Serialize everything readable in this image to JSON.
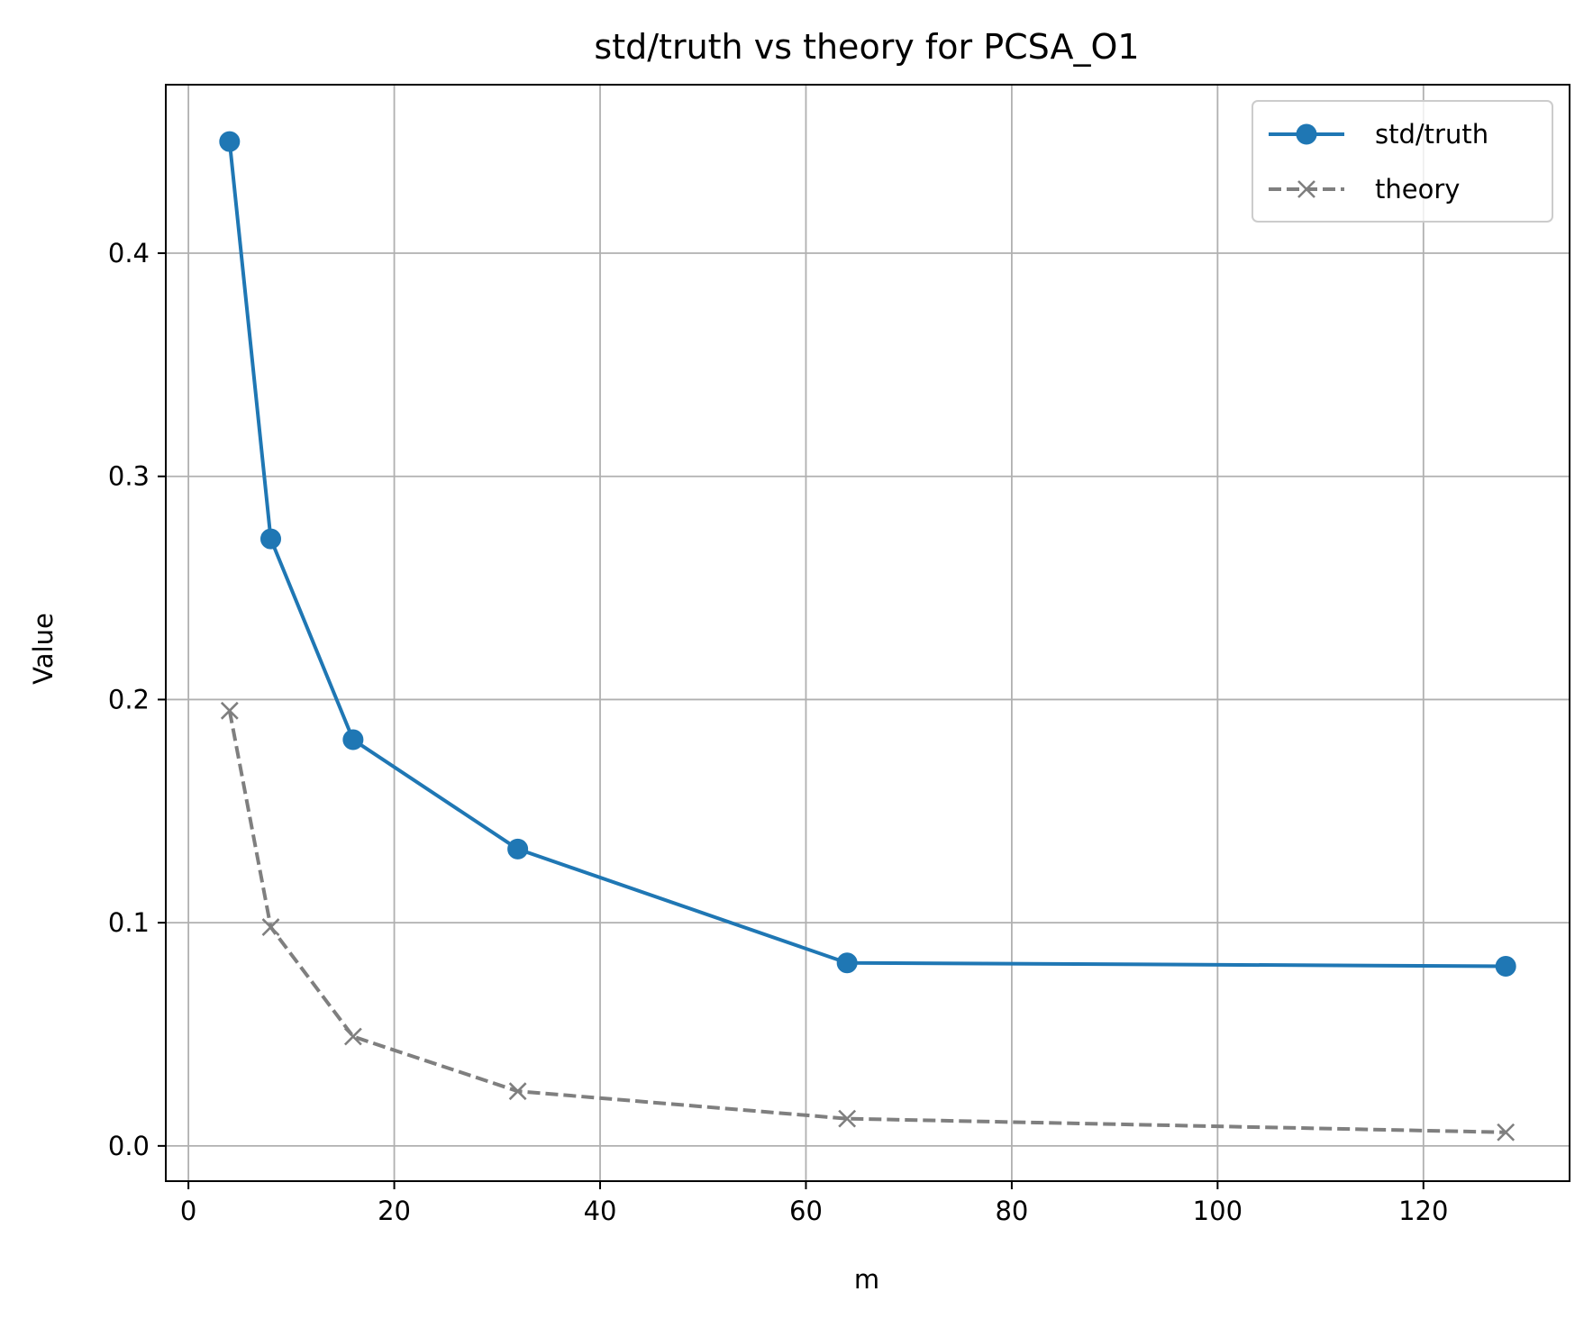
{
  "chart_data": {
    "type": "line",
    "title": "std/truth vs theory for PCSA_O1",
    "xlabel": "m",
    "ylabel": "Value",
    "xlim": [
      -2.2,
      134.2
    ],
    "ylim": [
      -0.0158,
      0.4755
    ],
    "xticks": [
      0,
      20,
      40,
      60,
      80,
      100,
      120
    ],
    "yticks": [
      0.0,
      0.1,
      0.2,
      0.3,
      0.4
    ],
    "xtick_labels": [
      "0",
      "20",
      "40",
      "60",
      "80",
      "100",
      "120"
    ],
    "ytick_labels": [
      "0.0",
      "0.1",
      "0.2",
      "0.3",
      "0.4"
    ],
    "grid": true,
    "legend_position": "top-right",
    "x": [
      4,
      8,
      16,
      32,
      64,
      128
    ],
    "series": [
      {
        "name": "std/truth",
        "values": [
          0.45,
          0.272,
          0.182,
          0.133,
          0.082,
          0.0805
        ],
        "color": "#1f77b4",
        "marker": "circle",
        "linestyle": "solid"
      },
      {
        "name": "theory",
        "values": [
          0.195,
          0.098,
          0.049,
          0.0245,
          0.0122,
          0.0061
        ],
        "color": "#7f7f7f",
        "marker": "x",
        "linestyle": "dashed"
      }
    ]
  },
  "colors": {
    "grid": "#b0b0b0",
    "axes": "#000000",
    "background": "#ffffff"
  }
}
